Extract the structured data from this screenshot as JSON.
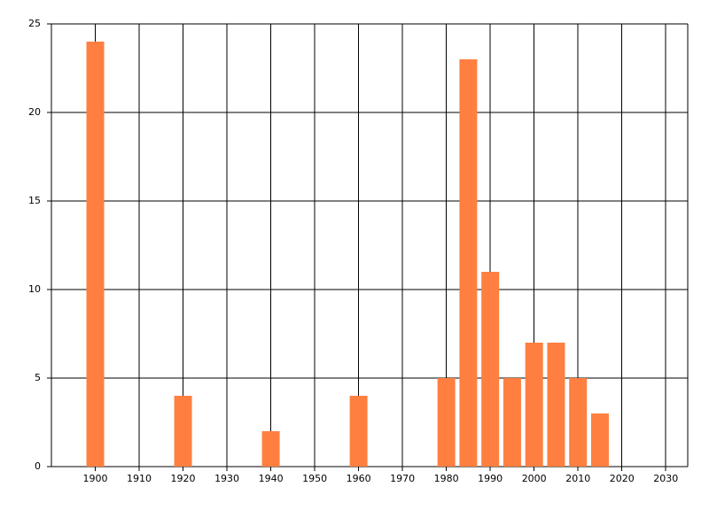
{
  "chart_data": {
    "type": "bar",
    "x": [
      1900,
      1920,
      1940,
      1960,
      1980,
      1985,
      1990,
      1995,
      2000,
      2005,
      2010,
      2015
    ],
    "values": [
      24,
      4,
      2,
      4,
      5,
      23,
      11,
      5,
      7,
      7,
      5,
      3
    ],
    "color": "#ff7f40",
    "xlim": [
      1890,
      2035
    ],
    "xticks": [
      1900,
      1910,
      1920,
      1930,
      1940,
      1950,
      1960,
      1970,
      1980,
      1990,
      2000,
      2010,
      2020,
      2030
    ],
    "ylim": [
      0,
      25
    ],
    "yticks": [
      0,
      5,
      10,
      15,
      20,
      25
    ],
    "grid": true
  }
}
